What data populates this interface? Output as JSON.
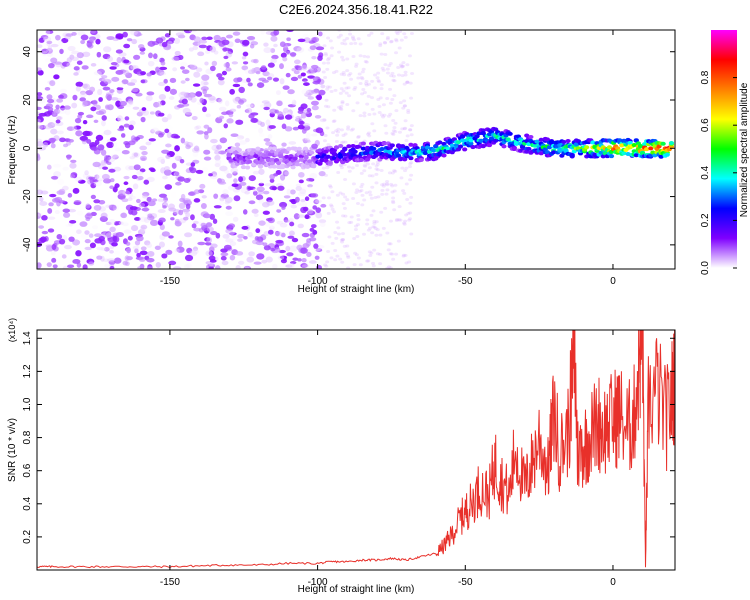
{
  "title": "C2E6.2024.356.18.41.R22",
  "chart_data": [
    {
      "type": "heatmap",
      "xlabel": "Height of straight line (km)",
      "ylabel": "Frequency (Hz)",
      "xlim": [
        -195,
        21
      ],
      "ylim": [
        -50,
        49
      ],
      "xticks": [
        -150,
        -100,
        -50,
        0
      ],
      "yticks": [
        -40,
        -20,
        0,
        20,
        40
      ],
      "colorbar": {
        "label": "Normalized spectral amplitude",
        "range": [
          0,
          1
        ],
        "ticks": [
          "0.0",
          "0.2",
          "0.4",
          "0.6",
          "0.8"
        ]
      },
      "colormap": [
        "#ffffff",
        "#7f00ff",
        "#0000ff",
        "#00ffff",
        "#00ff00",
        "#ffff00",
        "#ff8000",
        "#ff0000",
        "#ff00ff"
      ],
      "background_noise": {
        "x_range": [
          -195,
          -98
        ],
        "freq_range": [
          -50,
          49
        ],
        "amplitude": [
          0.0,
          0.12
        ]
      },
      "signal_ridge": {
        "x": [
          -100,
          -90,
          -80,
          -70,
          -60,
          -50,
          -40,
          -30,
          -20,
          -10,
          0,
          10,
          20
        ],
        "freq": [
          -4,
          -2,
          -1,
          -2,
          -1,
          3,
          5,
          2,
          0,
          0,
          0,
          0,
          0
        ],
        "peak_amplitude": [
          0.25,
          0.3,
          0.35,
          0.4,
          0.45,
          0.45,
          0.45,
          0.45,
          0.5,
          0.6,
          0.85,
          0.9,
          0.9
        ]
      }
    },
    {
      "type": "line",
      "xlabel": "Height of straight line (km)",
      "ylabel": "SNR (10 * v/v)",
      "yscale_label": "(x10⁴)",
      "xlim": [
        -195,
        21
      ],
      "ylim": [
        0,
        1.45
      ],
      "xticks": [
        -150,
        -100,
        -50,
        0
      ],
      "xtick_labels": [
        "-150",
        "-100",
        "-50",
        "0"
      ],
      "yticks": [
        0.2,
        0.4,
        0.6,
        0.8,
        1.0,
        1.2,
        1.4
      ],
      "ytick_labels": [
        "0.2",
        "0.4",
        "0.6",
        "0.8",
        "1.0",
        "1.2",
        "1.4"
      ],
      "color": "#e8302a",
      "x": [
        -195,
        -190,
        -180,
        -170,
        -160,
        -150,
        -140,
        -130,
        -120,
        -110,
        -100,
        -95,
        -90,
        -85,
        -80,
        -75,
        -70,
        -65,
        -60,
        -57,
        -55,
        -52,
        -50,
        -48,
        -45,
        -42,
        -40,
        -38,
        -35,
        -33,
        -30,
        -28,
        -25,
        -22,
        -20,
        -18,
        -15,
        -13,
        -12,
        -10,
        -8,
        -5,
        -3,
        0,
        2,
        5,
        7,
        9,
        10,
        11,
        12,
        15,
        18,
        20,
        21
      ],
      "y": [
        0.02,
        0.02,
        0.02,
        0.02,
        0.02,
        0.02,
        0.025,
        0.03,
        0.03,
        0.04,
        0.04,
        0.05,
        0.05,
        0.06,
        0.06,
        0.07,
        0.06,
        0.08,
        0.1,
        0.15,
        0.2,
        0.3,
        0.35,
        0.4,
        0.5,
        0.45,
        0.65,
        0.55,
        0.45,
        0.75,
        0.5,
        0.6,
        0.8,
        0.6,
        0.95,
        0.7,
        0.85,
        1.33,
        0.7,
        0.75,
        0.8,
        0.9,
        0.85,
        0.9,
        0.95,
        0.85,
        0.9,
        1.3,
        1.45,
        0.02,
        1.0,
        1.1,
        0.9,
        1.05,
        1.2
      ]
    }
  ]
}
